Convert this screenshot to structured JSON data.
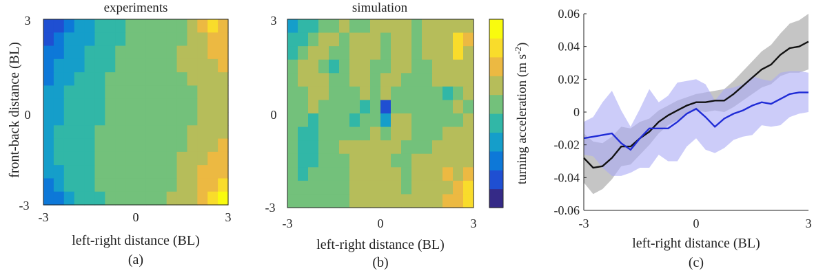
{
  "figure": {
    "panel_a": {
      "title": "experiments",
      "xlabel": "left-right distance (BL)",
      "ylabel": "front-back distance (BL)",
      "caption": "(a)",
      "xticks": [
        "-3",
        "0",
        "3"
      ],
      "yticks": [
        "3",
        "0",
        "-3"
      ]
    },
    "panel_b": {
      "title": "simulation",
      "xlabel": "left-right distance (BL)",
      "caption": "(b)",
      "xticks": [
        "-3",
        "0",
        "3"
      ],
      "yticks": [
        "3",
        "0",
        "-3"
      ],
      "colorbar_label": "turning acceleration (m s",
      "colorbar_label_exp": "-2",
      "colorbar_label_close": ")"
    },
    "panel_c": {
      "xlabel": "left-right distance (BL)",
      "caption": "(c)",
      "xticks": [
        "-3",
        "0",
        "3"
      ],
      "yticks": [
        "0.06",
        "0.04",
        "0.02",
        "0",
        "-0.02",
        "-0.04",
        "-0.06"
      ]
    }
  },
  "chart_data": [
    {
      "type": "heatmap",
      "panel": "(a)",
      "title": "experiments",
      "xlabel": "left-right distance (BL)",
      "ylabel": "front-back distance (BL)",
      "xlim": [
        -3,
        3
      ],
      "ylim": [
        -3,
        3
      ],
      "colormap": "parula",
      "rows_top_to_bottom": [
        [
          1,
          1,
          2,
          3,
          3,
          4,
          4,
          4,
          5,
          5,
          5,
          5,
          5,
          5,
          6,
          7,
          8,
          7
        ],
        [
          1,
          2,
          3,
          3,
          3,
          4,
          4,
          4,
          5,
          5,
          5,
          5,
          5,
          5,
          6,
          6,
          7,
          7
        ],
        [
          2,
          2,
          3,
          3,
          4,
          4,
          4,
          5,
          5,
          5,
          5,
          5,
          5,
          6,
          6,
          6,
          7,
          7
        ],
        [
          2,
          3,
          3,
          3,
          4,
          4,
          4,
          5,
          5,
          5,
          5,
          5,
          5,
          6,
          6,
          6,
          6,
          7
        ],
        [
          2,
          3,
          3,
          4,
          4,
          4,
          5,
          5,
          5,
          5,
          5,
          5,
          5,
          5,
          6,
          6,
          6,
          6
        ],
        [
          3,
          3,
          4,
          4,
          4,
          4,
          5,
          5,
          5,
          5,
          5,
          5,
          5,
          5,
          5,
          6,
          6,
          6
        ],
        [
          3,
          3,
          4,
          4,
          4,
          4,
          5,
          5,
          5,
          5,
          5,
          5,
          5,
          5,
          5,
          6,
          6,
          6
        ],
        [
          3,
          3,
          4,
          4,
          4,
          4,
          5,
          5,
          5,
          5,
          5,
          5,
          5,
          5,
          5,
          6,
          6,
          6
        ],
        [
          3,
          4,
          4,
          4,
          4,
          5,
          5,
          5,
          5,
          5,
          5,
          5,
          5,
          5,
          6,
          6,
          6,
          6
        ],
        [
          3,
          4,
          4,
          4,
          4,
          5,
          5,
          5,
          5,
          5,
          5,
          5,
          5,
          5,
          6,
          6,
          6,
          7
        ],
        [
          3,
          4,
          4,
          4,
          4,
          5,
          5,
          5,
          5,
          5,
          5,
          5,
          5,
          6,
          6,
          6,
          7,
          7
        ],
        [
          3,
          3,
          4,
          4,
          4,
          5,
          5,
          5,
          5,
          5,
          5,
          5,
          5,
          6,
          6,
          7,
          7,
          7
        ],
        [
          2,
          3,
          4,
          4,
          4,
          5,
          5,
          5,
          5,
          5,
          5,
          5,
          5,
          6,
          6,
          7,
          7,
          8
        ],
        [
          2,
          2,
          3,
          4,
          4,
          4,
          5,
          5,
          5,
          5,
          5,
          5,
          6,
          6,
          6,
          7,
          8,
          9
        ]
      ]
    },
    {
      "type": "heatmap",
      "panel": "(b)",
      "title": "simulation",
      "xlabel": "left-right distance (BL)",
      "xlim": [
        -3,
        3
      ],
      "ylim": [
        -3,
        3
      ],
      "colormap": "parula",
      "colorbar": true,
      "colorbar_label": "turning acceleration (m s-2)",
      "rows_top_to_bottom": [
        [
          3,
          4,
          4,
          5,
          5,
          6,
          5,
          5,
          6,
          6,
          6,
          6,
          5,
          6,
          6,
          6,
          6,
          6
        ],
        [
          4,
          4,
          5,
          6,
          6,
          5,
          6,
          6,
          6,
          5,
          6,
          6,
          5,
          6,
          6,
          6,
          8,
          7
        ],
        [
          4,
          5,
          6,
          6,
          5,
          5,
          6,
          6,
          6,
          5,
          6,
          6,
          5,
          6,
          6,
          6,
          8,
          6
        ],
        [
          5,
          6,
          6,
          5,
          4,
          5,
          6,
          6,
          5,
          5,
          6,
          6,
          5,
          5,
          6,
          6,
          6,
          6
        ],
        [
          5,
          6,
          6,
          6,
          5,
          5,
          6,
          6,
          5,
          6,
          6,
          5,
          5,
          5,
          6,
          6,
          6,
          6
        ],
        [
          5,
          5,
          6,
          6,
          5,
          5,
          5,
          6,
          5,
          6,
          5,
          5,
          5,
          5,
          5,
          4,
          5,
          6
        ],
        [
          5,
          5,
          6,
          5,
          5,
          5,
          5,
          4,
          5,
          1,
          5,
          5,
          5,
          5,
          5,
          5,
          6,
          5
        ],
        [
          5,
          5,
          4,
          5,
          5,
          5,
          4,
          5,
          5,
          3,
          6,
          6,
          5,
          5,
          5,
          5,
          5,
          6
        ],
        [
          5,
          4,
          4,
          5,
          5,
          5,
          5,
          5,
          6,
          5,
          6,
          6,
          5,
          5,
          5,
          6,
          6,
          6
        ],
        [
          5,
          4,
          4,
          5,
          5,
          6,
          6,
          6,
          6,
          6,
          6,
          5,
          5,
          5,
          6,
          6,
          6,
          6
        ],
        [
          5,
          4,
          4,
          5,
          5,
          5,
          6,
          6,
          6,
          6,
          5,
          5,
          6,
          6,
          6,
          6,
          6,
          6
        ],
        [
          5,
          4,
          5,
          5,
          5,
          5,
          6,
          6,
          6,
          6,
          6,
          5,
          6,
          6,
          6,
          7,
          6,
          7
        ],
        [
          5,
          5,
          5,
          5,
          5,
          5,
          6,
          6,
          6,
          6,
          6,
          5,
          6,
          6,
          6,
          6,
          7,
          8
        ],
        [
          5,
          5,
          5,
          5,
          5,
          5,
          6,
          6,
          6,
          6,
          6,
          6,
          6,
          6,
          6,
          7,
          7,
          8
        ]
      ]
    },
    {
      "type": "line",
      "panel": "(c)",
      "xlabel": "left-right distance (BL)",
      "xlim": [
        -3,
        3
      ],
      "ylim": [
        -0.06,
        0.06
      ],
      "x": [
        -3,
        -2.75,
        -2.5,
        -2.25,
        -2,
        -1.75,
        -1.5,
        -1.25,
        -1,
        -0.75,
        -0.5,
        -0.25,
        0,
        0.25,
        0.5,
        0.75,
        1,
        1.25,
        1.5,
        1.75,
        2,
        2.25,
        2.5,
        2.75,
        3
      ],
      "series": [
        {
          "color": "#111111",
          "band_color": "#bbbbbb",
          "values": [
            -0.028,
            -0.034,
            -0.033,
            -0.028,
            -0.021,
            -0.021,
            -0.016,
            -0.012,
            -0.006,
            -0.002,
            0.001,
            0.004,
            0.006,
            0.006,
            0.007,
            0.007,
            0.011,
            0.016,
            0.021,
            0.026,
            0.029,
            0.035,
            0.039,
            0.04,
            0.043
          ],
          "band_half_width": [
            0.015,
            0.016,
            0.014,
            0.013,
            0.012,
            0.011,
            0.01,
            0.008,
            0.007,
            0.006,
            0.006,
            0.005,
            0.005,
            0.006,
            0.006,
            0.007,
            0.008,
            0.009,
            0.01,
            0.011,
            0.012,
            0.013,
            0.015,
            0.016,
            0.017
          ]
        },
        {
          "color": "#1f2bd6",
          "band_color": "#aaaaf5",
          "values": [
            -0.016,
            -0.015,
            -0.014,
            -0.013,
            -0.019,
            -0.023,
            -0.016,
            -0.01,
            -0.01,
            -0.01,
            -0.006,
            -0.001,
            0.002,
            -0.003,
            -0.009,
            -0.004,
            -0.001,
            0.001,
            0.004,
            0.006,
            0.005,
            0.008,
            0.011,
            0.012,
            0.012
          ],
          "band_half_width": [
            0.01,
            0.012,
            0.02,
            0.026,
            0.02,
            0.014,
            0.018,
            0.024,
            0.016,
            0.02,
            0.024,
            0.02,
            0.018,
            0.02,
            0.016,
            0.018,
            0.016,
            0.016,
            0.018,
            0.014,
            0.014,
            0.016,
            0.014,
            0.013,
            0.012
          ]
        }
      ]
    }
  ],
  "colors": {
    "parula": [
      "#352a87",
      "#1f4fd2",
      "#0d78d8",
      "#159eca",
      "#31b7a7",
      "#73c17b",
      "#b6bd5a",
      "#ecb942",
      "#f9dc2b",
      "#f9fb0e"
    ],
    "axis": "#222222",
    "black_line": "#111111",
    "blue_line": "#1f2bd6",
    "gray_band": "#bbbbbb",
    "blue_band": "#aaaaf5"
  }
}
